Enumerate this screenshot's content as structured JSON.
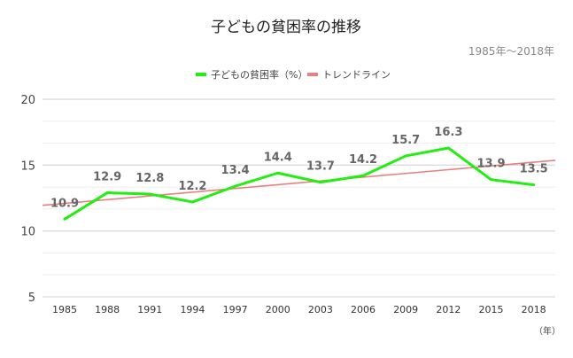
{
  "chart_data": {
    "type": "line",
    "title": "子どもの貧困率の推移",
    "subtitle": "1985年～2018年",
    "xlabel": "（年）",
    "ylabel": "",
    "categories": [
      "1985",
      "1988",
      "1991",
      "1994",
      "1997",
      "2000",
      "2003",
      "2006",
      "2009",
      "2012",
      "2015",
      "2018"
    ],
    "series": [
      {
        "name": "子どもの貧困率（%）",
        "color": "#22ee11",
        "values": [
          10.9,
          12.9,
          12.8,
          12.2,
          13.4,
          14.4,
          13.7,
          14.2,
          15.7,
          16.3,
          13.9,
          13.5
        ]
      },
      {
        "name": "トレンドライン",
        "color": "#e88080",
        "type": "linear-trend"
      }
    ],
    "ylim": [
      5,
      20
    ],
    "yticks": [
      "5",
      "10",
      "15",
      "20"
    ],
    "grid": true,
    "legend": "top-center"
  }
}
